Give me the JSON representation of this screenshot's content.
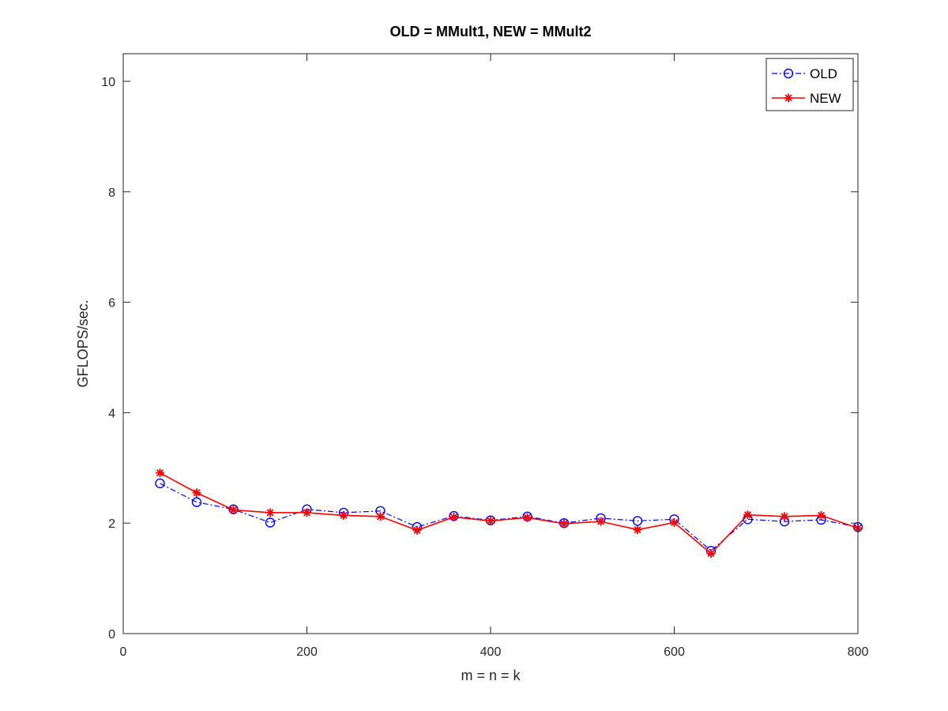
{
  "chart_data": {
    "type": "line",
    "title": "OLD = MMult1, NEW = MMult2",
    "xlabel": "m = n = k",
    "ylabel": "GFLOPS/sec.",
    "xlim": [
      0,
      800
    ],
    "ylim": [
      0,
      10.5
    ],
    "xticks": [
      0,
      200,
      400,
      600,
      800
    ],
    "yticks": [
      0,
      2,
      4,
      6,
      8,
      10
    ],
    "grid": false,
    "legend_position": "top-right",
    "x": [
      40,
      80,
      120,
      160,
      200,
      240,
      280,
      320,
      360,
      400,
      440,
      480,
      520,
      560,
      600,
      640,
      680,
      720,
      760,
      800
    ],
    "series": [
      {
        "name": "OLD",
        "color": "#0000ff",
        "marker": "circle",
        "line_style": "dash-dot",
        "values": [
          2.72,
          2.38,
          2.25,
          2.01,
          2.25,
          2.19,
          2.22,
          1.93,
          2.13,
          2.05,
          2.12,
          2.0,
          2.09,
          2.04,
          2.07,
          1.5,
          2.07,
          2.03,
          2.06,
          1.93
        ]
      },
      {
        "name": "NEW",
        "color": "#ff0000",
        "marker": "star",
        "line_style": "solid",
        "values": [
          2.91,
          2.55,
          2.24,
          2.19,
          2.19,
          2.14,
          2.12,
          1.87,
          2.11,
          2.04,
          2.1,
          1.99,
          2.03,
          1.88,
          2.01,
          1.45,
          2.15,
          2.12,
          2.14,
          1.91
        ]
      }
    ]
  }
}
